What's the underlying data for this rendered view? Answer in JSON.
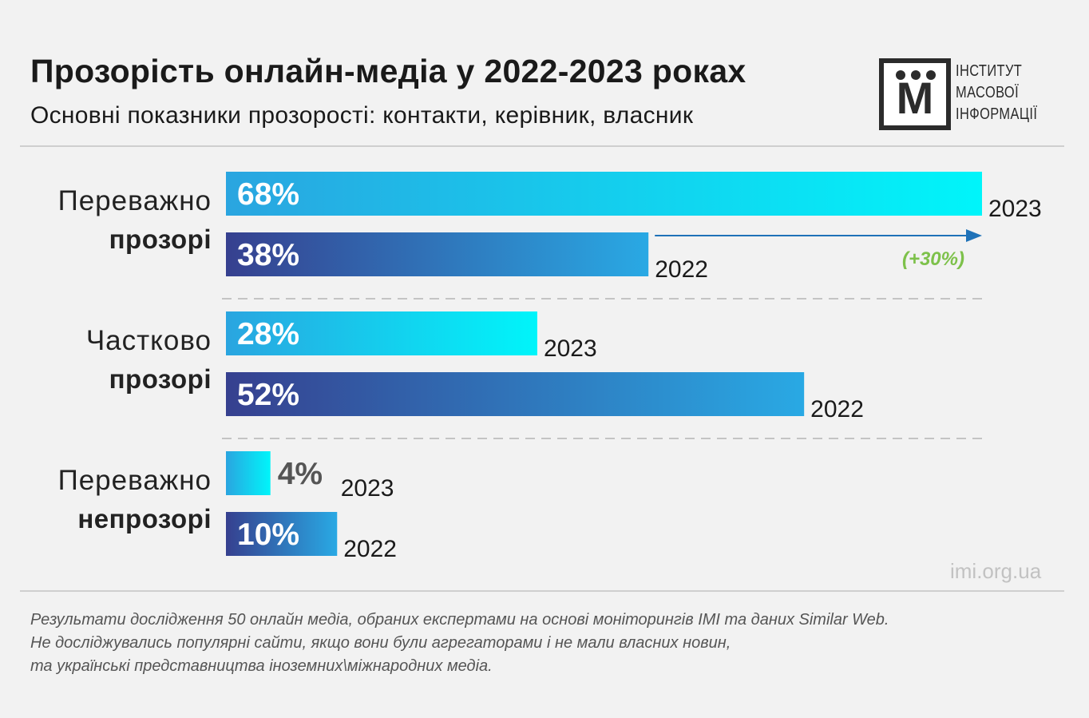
{
  "header": {
    "title": "Прозорість онлайн-медіа у 2022-2023 роках",
    "subtitle": "Основні показники прозорості: контакти, керівник, власник"
  },
  "logo": {
    "mark": "М",
    "lines": [
      "ІНСТИТУТ",
      "МАСОВОЇ",
      "ІНФОРМАЦІЇ"
    ],
    "color": "#2b2b2b"
  },
  "chart_data": {
    "type": "bar",
    "orientation": "horizontal",
    "x_max": 68,
    "categories": [
      {
        "label_light": "Переважно",
        "label_bold": "прозорі"
      },
      {
        "label_light": "Частково",
        "label_bold": "прозорі"
      },
      {
        "label_light": "Переважно",
        "label_bold": "непрозорі"
      }
    ],
    "series": [
      {
        "name": "2023",
        "values": [
          68,
          28,
          4
        ],
        "labels": [
          "68%",
          "28%",
          "4%"
        ],
        "gradient": [
          "#2aa5e0",
          "#00f5fa"
        ]
      },
      {
        "name": "2022",
        "values": [
          38,
          52,
          10
        ],
        "labels": [
          "38%",
          "52%",
          "10%"
        ],
        "gradient": [
          "#36408f",
          "#29a9e4"
        ]
      }
    ],
    "annotation": {
      "text": "(+30%)",
      "color": "#7dc14a",
      "arrow_color": "#1f72b8"
    }
  },
  "source": "imi.org.ua",
  "footnote": [
    "Результати дослідження 50 онлайн медіа, обраних експертами на основі моніторингів IMI та даних Similar Web.",
    "Не досліджувались популярні сайти, якщо вони були агрегаторами і не мали власних новин,",
    "та українські представництва іноземних\\міжнародних медіа."
  ]
}
